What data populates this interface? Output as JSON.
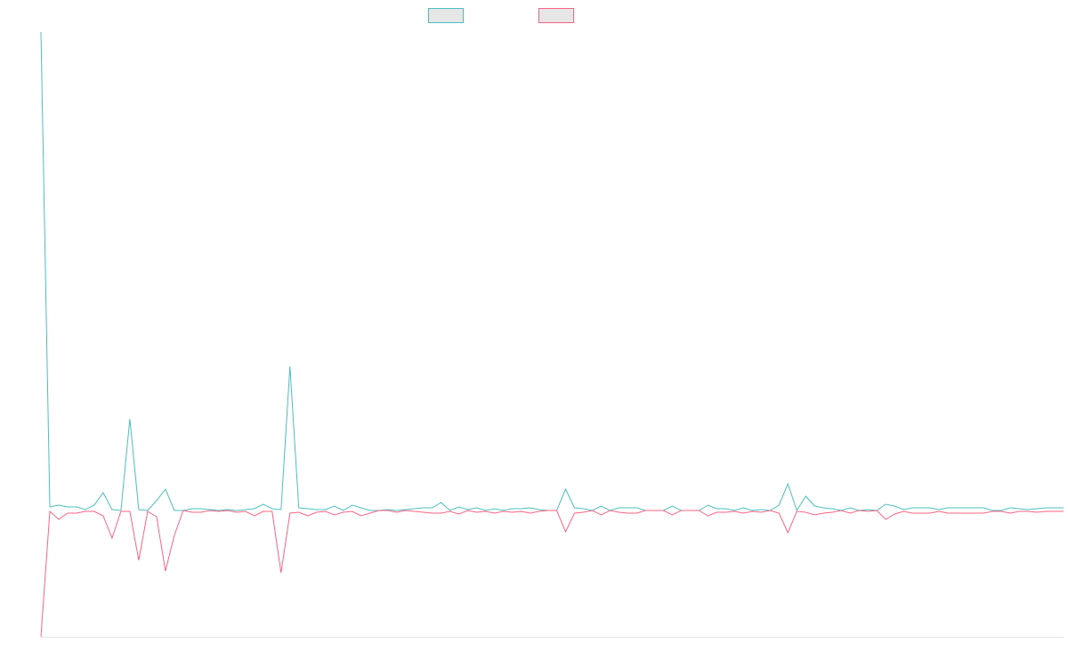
{
  "chart_data": {
    "type": "line",
    "title": "",
    "xlabel": "",
    "ylabel": "",
    "grid": false,
    "legend_position": "top-center",
    "ylim": [
      -142,
      538
    ],
    "x": [
      0,
      1,
      2,
      3,
      4,
      5,
      6,
      7,
      8,
      9,
      10,
      11,
      12,
      13,
      14,
      15,
      16,
      17,
      18,
      19,
      20,
      21,
      22,
      23,
      24,
      25,
      26,
      27,
      28,
      29,
      30,
      31,
      32,
      33,
      34,
      35,
      36,
      37,
      38,
      39,
      40,
      41,
      42,
      43,
      44,
      45,
      46,
      47,
      48,
      49,
      50,
      51,
      52,
      53,
      54,
      55,
      56,
      57,
      58,
      59,
      60,
      61,
      62,
      63,
      64,
      65,
      66,
      67,
      68,
      69,
      70,
      71,
      72,
      73,
      74,
      75,
      76,
      77,
      78,
      79,
      80,
      81,
      82,
      83,
      84,
      85,
      86,
      87,
      88,
      89,
      90,
      91,
      92,
      93,
      94,
      95,
      96,
      97,
      98,
      99,
      100,
      101,
      102,
      103,
      104,
      105,
      106,
      107,
      108,
      109,
      110,
      111,
      112,
      113,
      114,
      115
    ],
    "series": [
      {
        "name": "",
        "color": "#4bc0c0",
        "values": [
          538,
          4,
          6,
          4,
          4,
          1,
          6,
          20,
          1,
          0,
          103,
          1,
          0,
          11,
          24,
          0,
          0,
          2,
          2,
          1,
          0,
          1,
          0,
          1,
          2,
          7,
          2,
          1,
          162,
          3,
          2,
          1,
          1,
          5,
          0,
          6,
          3,
          0,
          0,
          1,
          0,
          1,
          2,
          3,
          3,
          9,
          0,
          4,
          1,
          3,
          0,
          2,
          0,
          2,
          2,
          3,
          1,
          0,
          0,
          24,
          3,
          2,
          0,
          5,
          0,
          3,
          3,
          3,
          0,
          0,
          0,
          5,
          0,
          0,
          0,
          6,
          2,
          2,
          0,
          3,
          0,
          1,
          0,
          6,
          30,
          0,
          16,
          5,
          3,
          2,
          0,
          3,
          0,
          1,
          0,
          7,
          5,
          1,
          3,
          3,
          3,
          1,
          3,
          3,
          3,
          3,
          3,
          0,
          0,
          3,
          2,
          1,
          2,
          3,
          3,
          3
        ]
      },
      {
        "name": "",
        "color": "#ff6384",
        "values": [
          -142,
          -1,
          -10,
          -3,
          -3,
          -1,
          -1,
          -6,
          -31,
          -1,
          -1,
          -56,
          -1,
          -7,
          -68,
          -28,
          0,
          -2,
          -2,
          0,
          -1,
          0,
          -2,
          -1,
          -6,
          -1,
          -1,
          -70,
          -3,
          -2,
          -6,
          -2,
          -1,
          -5,
          -2,
          -1,
          -6,
          -3,
          0,
          0,
          -2,
          0,
          -1,
          -2,
          -3,
          -3,
          -1,
          -4,
          0,
          -2,
          -1,
          -3,
          -1,
          -2,
          -1,
          -3,
          -1,
          0,
          0,
          -24,
          -3,
          -2,
          0,
          -5,
          0,
          -2,
          -3,
          -3,
          0,
          0,
          0,
          -5,
          0,
          0,
          0,
          -6,
          -2,
          -2,
          -1,
          -3,
          -1,
          -2,
          0,
          -3,
          -25,
          -1,
          -2,
          -5,
          -3,
          -2,
          0,
          -3,
          0,
          -1,
          0,
          -10,
          -4,
          -1,
          -3,
          -3,
          -3,
          -1,
          -3,
          -3,
          -3,
          -3,
          -3,
          -1,
          -1,
          -3,
          -1,
          -1,
          -2,
          -1,
          -1,
          -1
        ]
      }
    ]
  }
}
